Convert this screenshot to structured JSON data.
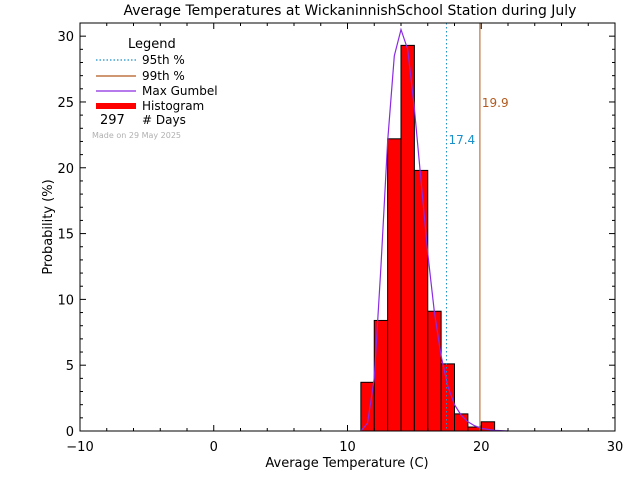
{
  "chart_data": {
    "type": "bar",
    "title": "Average Temperatures at WickaninnishSchool Station during July",
    "xlabel": "Average Temperature (C)",
    "ylabel": "Probability (%)",
    "xlim": [
      -10,
      30
    ],
    "ylim": [
      0,
      31
    ],
    "x_ticks": [
      -10,
      0,
      10,
      20,
      30
    ],
    "y_ticks": [
      0,
      5,
      10,
      15,
      20,
      25,
      30
    ],
    "x_tick_labels": [
      "−10",
      "0",
      "10",
      "20",
      "30"
    ],
    "y_tick_labels": [
      "0",
      "5",
      "10",
      "15",
      "20",
      "25",
      "30"
    ],
    "legend": {
      "title": "Legend",
      "placement": "top-left",
      "entries": {
        "p95": "95th %",
        "p99": "99th %",
        "gumbel": "Max Gumbel",
        "hist": "Histogram",
        "days_count": "297",
        "days_label": "# Days"
      },
      "made_on": "Made on 29 May 2025"
    },
    "histogram": {
      "bin_width": 1,
      "bins": [
        {
          "x0": 11,
          "value": 3.7
        },
        {
          "x0": 12,
          "value": 8.4
        },
        {
          "x0": 13,
          "value": 22.2
        },
        {
          "x0": 14,
          "value": 29.3
        },
        {
          "x0": 15,
          "value": 19.8
        },
        {
          "x0": 16,
          "value": 9.1
        },
        {
          "x0": 17,
          "value": 5.1
        },
        {
          "x0": 18,
          "value": 1.3
        },
        {
          "x0": 19,
          "value": 0.3
        },
        {
          "x0": 20,
          "value": 0.7
        }
      ]
    },
    "percentiles": [
      {
        "name": "95th %",
        "value": 17.4,
        "label": "17.4",
        "color": "#1a8fc9",
        "style": "dotted"
      },
      {
        "name": "99th %",
        "value": 19.9,
        "label": "19.9",
        "color": "#b25a1e",
        "style": "solid"
      }
    ],
    "gumbel_curve": {
      "name": "Max Gumbel",
      "color": "#8a2be2",
      "x": [
        11,
        11.5,
        12,
        12.5,
        13,
        13.5,
        14,
        14.5,
        15,
        15.5,
        16,
        16.5,
        17,
        17.5,
        18,
        18.5,
        19,
        19.5,
        20,
        21,
        22
      ],
      "y": [
        0.0,
        0.6,
        4.0,
        12.5,
        22.0,
        28.5,
        30.5,
        29.0,
        24.5,
        19.0,
        13.5,
        9.0,
        5.7,
        3.4,
        2.0,
        1.2,
        0.7,
        0.4,
        0.2,
        0.05,
        0.0
      ]
    },
    "colors": {
      "histogram_fill": "#ff0000",
      "histogram_edge": "#000000",
      "axes": "#000000",
      "legend_histogram": "#ff0000",
      "made_on_text": "#b0b0b0"
    }
  }
}
